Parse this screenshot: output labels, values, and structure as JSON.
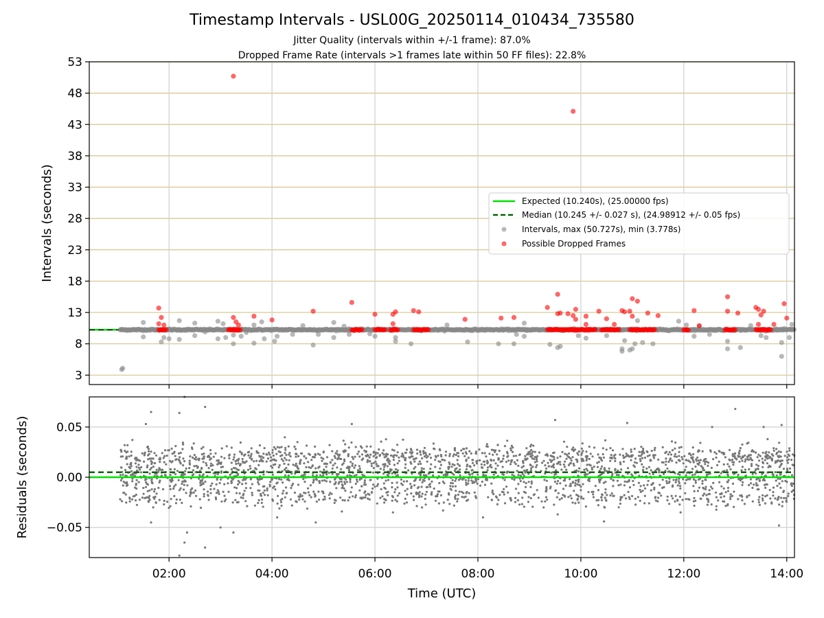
{
  "chart_data": [
    {
      "type": "scatter",
      "title": "Timestamp Intervals - USL00G_20250114_010434_735580",
      "subtitle_lines": [
        "Jitter Quality (intervals within +/-1 frame): 87.0%",
        "Dropped Frame Rate (intervals >1 frames late within 50 FF files): 22.8%"
      ],
      "xlabel": "",
      "ylabel": "Intervals (seconds)",
      "x_unit": "hours UTC",
      "xlim": [
        0.45,
        14.15
      ],
      "ylim": [
        1.5,
        53
      ],
      "x_ticks": [
        2,
        4,
        6,
        8,
        10,
        12,
        14
      ],
      "y_ticks": [
        3,
        8,
        13,
        18,
        23,
        28,
        33,
        38,
        43,
        48,
        53
      ],
      "y_tick_labels": [
        "3",
        "8",
        "13",
        "18",
        "23",
        "28",
        "33",
        "38",
        "43",
        "48",
        "53"
      ],
      "grid": "horizontal (tan) and vertical (gray)",
      "legend_position": "right",
      "legend": [
        {
          "label": "Expected (10.240s), (25.00000 fps)",
          "style": "solid-line",
          "color": "#00e000"
        },
        {
          "label": "Median (10.245 +/- 0.027 s), (24.98912 +/- 0.05 fps)",
          "style": "dashed-line",
          "color": "#006400"
        },
        {
          "label": "Intervals, max (50.727s), min (3.778s)",
          "style": "dot",
          "color": "#888888"
        },
        {
          "label": "Possible Dropped Frames",
          "style": "dot",
          "color": "#ff0000"
        }
      ],
      "expected_interval": 10.24,
      "median_interval": 10.245,
      "interval_band": {
        "x_start": 1.05,
        "x_end": 14.15,
        "value": 10.24
      },
      "intervals_outliers": [
        {
          "x": 1.08,
          "y": 3.9
        },
        {
          "x": 1.1,
          "y": 4.1
        },
        {
          "x": 1.5,
          "y": 11.4
        },
        {
          "x": 1.5,
          "y": 9.1
        },
        {
          "x": 1.85,
          "y": 8.3
        },
        {
          "x": 1.9,
          "y": 9.0
        },
        {
          "x": 2.0,
          "y": 8.8
        },
        {
          "x": 2.2,
          "y": 11.7
        },
        {
          "x": 2.2,
          "y": 8.7
        },
        {
          "x": 2.5,
          "y": 11.3
        },
        {
          "x": 2.5,
          "y": 9.3
        },
        {
          "x": 2.7,
          "y": 9.9
        },
        {
          "x": 2.95,
          "y": 11.6
        },
        {
          "x": 2.95,
          "y": 8.8
        },
        {
          "x": 3.05,
          "y": 11.2
        },
        {
          "x": 3.1,
          "y": 9.0
        },
        {
          "x": 3.25,
          "y": 8.0
        },
        {
          "x": 3.25,
          "y": 9.4
        },
        {
          "x": 3.4,
          "y": 9.2
        },
        {
          "x": 3.5,
          "y": 9.8
        },
        {
          "x": 3.65,
          "y": 11.0
        },
        {
          "x": 3.65,
          "y": 8.1
        },
        {
          "x": 3.8,
          "y": 11.5
        },
        {
          "x": 3.85,
          "y": 8.8
        },
        {
          "x": 4.05,
          "y": 8.4
        },
        {
          "x": 4.1,
          "y": 9.2
        },
        {
          "x": 4.4,
          "y": 9.5
        },
        {
          "x": 4.6,
          "y": 10.9
        },
        {
          "x": 4.8,
          "y": 7.8
        },
        {
          "x": 4.9,
          "y": 9.5
        },
        {
          "x": 5.2,
          "y": 11.4
        },
        {
          "x": 5.2,
          "y": 9.0
        },
        {
          "x": 5.4,
          "y": 10.8
        },
        {
          "x": 5.5,
          "y": 9.5
        },
        {
          "x": 5.9,
          "y": 9.6
        },
        {
          "x": 6.0,
          "y": 9.2
        },
        {
          "x": 6.3,
          "y": 10.3
        },
        {
          "x": 6.4,
          "y": 8.4
        },
        {
          "x": 6.4,
          "y": 9.0
        },
        {
          "x": 6.7,
          "y": 8.0
        },
        {
          "x": 7.4,
          "y": 11.0
        },
        {
          "x": 7.8,
          "y": 8.3
        },
        {
          "x": 8.4,
          "y": 8.0
        },
        {
          "x": 8.5,
          "y": 10.2
        },
        {
          "x": 8.7,
          "y": 8.0
        },
        {
          "x": 8.75,
          "y": 9.5
        },
        {
          "x": 8.9,
          "y": 11.3
        },
        {
          "x": 8.9,
          "y": 9.2
        },
        {
          "x": 9.4,
          "y": 7.9
        },
        {
          "x": 9.55,
          "y": 7.4
        },
        {
          "x": 9.6,
          "y": 7.6
        },
        {
          "x": 9.95,
          "y": 9.3
        },
        {
          "x": 10.1,
          "y": 8.9
        },
        {
          "x": 10.5,
          "y": 9.3
        },
        {
          "x": 10.8,
          "y": 7.2
        },
        {
          "x": 10.8,
          "y": 6.8
        },
        {
          "x": 10.85,
          "y": 8.5
        },
        {
          "x": 10.95,
          "y": 7.0
        },
        {
          "x": 11.0,
          "y": 7.2
        },
        {
          "x": 11.05,
          "y": 8.0
        },
        {
          "x": 11.1,
          "y": 11.7
        },
        {
          "x": 11.2,
          "y": 8.2
        },
        {
          "x": 11.4,
          "y": 8.0
        },
        {
          "x": 11.9,
          "y": 11.6
        },
        {
          "x": 12.05,
          "y": 11.0
        },
        {
          "x": 12.2,
          "y": 9.2
        },
        {
          "x": 12.3,
          "y": 10.8
        },
        {
          "x": 12.5,
          "y": 9.5
        },
        {
          "x": 12.85,
          "y": 7.2
        },
        {
          "x": 12.85,
          "y": 8.4
        },
        {
          "x": 13.1,
          "y": 7.4
        },
        {
          "x": 13.3,
          "y": 10.9
        },
        {
          "x": 13.5,
          "y": 9.3
        },
        {
          "x": 13.6,
          "y": 9.0
        },
        {
          "x": 13.9,
          "y": 6.0
        },
        {
          "x": 13.9,
          "y": 8.2
        },
        {
          "x": 14.05,
          "y": 9.0
        },
        {
          "x": 14.1,
          "y": 11.1
        }
      ],
      "dropped_frame_clusters": [
        {
          "x_start": 1.8,
          "x_end": 1.95,
          "y": 10.24
        },
        {
          "x_start": 3.15,
          "x_end": 3.4,
          "y": 10.24
        },
        {
          "x_start": 5.55,
          "x_end": 5.75,
          "y": 10.24
        },
        {
          "x_start": 6.0,
          "x_end": 6.2,
          "y": 10.24
        },
        {
          "x_start": 6.3,
          "x_end": 6.45,
          "y": 10.24
        },
        {
          "x_start": 6.75,
          "x_end": 7.05,
          "y": 10.24
        },
        {
          "x_start": 9.35,
          "x_end": 10.3,
          "y": 10.24
        },
        {
          "x_start": 10.4,
          "x_end": 10.75,
          "y": 10.24
        },
        {
          "x_start": 10.95,
          "x_end": 11.45,
          "y": 10.24
        },
        {
          "x_start": 12.0,
          "x_end": 12.1,
          "y": 10.24
        },
        {
          "x_start": 12.8,
          "x_end": 13.0,
          "y": 10.24
        },
        {
          "x_start": 13.4,
          "x_end": 13.7,
          "y": 10.24
        }
      ],
      "dropped_frames": [
        {
          "x": 1.8,
          "y": 13.7
        },
        {
          "x": 1.8,
          "y": 11.2
        },
        {
          "x": 1.85,
          "y": 12.2
        },
        {
          "x": 1.9,
          "y": 11.0
        },
        {
          "x": 3.25,
          "y": 50.7
        },
        {
          "x": 3.25,
          "y": 12.2
        },
        {
          "x": 3.3,
          "y": 11.5
        },
        {
          "x": 3.35,
          "y": 11.0
        },
        {
          "x": 3.65,
          "y": 12.4
        },
        {
          "x": 4.0,
          "y": 11.8
        },
        {
          "x": 4.8,
          "y": 13.2
        },
        {
          "x": 5.55,
          "y": 14.6
        },
        {
          "x": 6.0,
          "y": 12.7
        },
        {
          "x": 6.35,
          "y": 12.7
        },
        {
          "x": 6.4,
          "y": 13.1
        },
        {
          "x": 6.35,
          "y": 11.2
        },
        {
          "x": 6.75,
          "y": 13.3
        },
        {
          "x": 6.85,
          "y": 13.1
        },
        {
          "x": 7.75,
          "y": 11.9
        },
        {
          "x": 8.45,
          "y": 12.1
        },
        {
          "x": 8.7,
          "y": 12.2
        },
        {
          "x": 9.35,
          "y": 13.8
        },
        {
          "x": 9.55,
          "y": 15.9
        },
        {
          "x": 9.55,
          "y": 12.8
        },
        {
          "x": 9.6,
          "y": 12.9
        },
        {
          "x": 9.75,
          "y": 12.8
        },
        {
          "x": 9.85,
          "y": 45.1
        },
        {
          "x": 9.85,
          "y": 12.5
        },
        {
          "x": 9.9,
          "y": 13.5
        },
        {
          "x": 9.9,
          "y": 11.9
        },
        {
          "x": 10.1,
          "y": 12.4
        },
        {
          "x": 10.1,
          "y": 11.1
        },
        {
          "x": 10.35,
          "y": 13.2
        },
        {
          "x": 10.5,
          "y": 12.0
        },
        {
          "x": 10.65,
          "y": 11.1
        },
        {
          "x": 10.8,
          "y": 13.3
        },
        {
          "x": 10.85,
          "y": 13.1
        },
        {
          "x": 10.95,
          "y": 13.2
        },
        {
          "x": 11.0,
          "y": 15.2
        },
        {
          "x": 11.0,
          "y": 12.4
        },
        {
          "x": 11.1,
          "y": 14.8
        },
        {
          "x": 11.3,
          "y": 12.9
        },
        {
          "x": 11.5,
          "y": 12.5
        },
        {
          "x": 12.2,
          "y": 13.3
        },
        {
          "x": 12.3,
          "y": 10.9
        },
        {
          "x": 12.85,
          "y": 15.5
        },
        {
          "x": 12.85,
          "y": 13.2
        },
        {
          "x": 13.05,
          "y": 12.9
        },
        {
          "x": 13.4,
          "y": 13.8
        },
        {
          "x": 13.45,
          "y": 13.5
        },
        {
          "x": 13.5,
          "y": 12.6
        },
        {
          "x": 13.55,
          "y": 13.2
        },
        {
          "x": 13.45,
          "y": 11.1
        },
        {
          "x": 13.75,
          "y": 11.1
        },
        {
          "x": 13.95,
          "y": 14.4
        },
        {
          "x": 14.0,
          "y": 12.1
        }
      ]
    },
    {
      "type": "scatter",
      "title": "",
      "xlabel": "Time (UTC)",
      "ylabel": "Residuals (seconds)",
      "xlim": [
        0.45,
        14.15
      ],
      "ylim": [
        -0.08,
        0.08
      ],
      "x_ticks": [
        2,
        4,
        6,
        8,
        10,
        12,
        14
      ],
      "x_tick_labels": [
        "02:00",
        "04:00",
        "06:00",
        "08:00",
        "10:00",
        "12:00",
        "14:00"
      ],
      "y_ticks": [
        -0.05,
        0.0,
        0.05
      ],
      "y_tick_labels": [
        "−0.05",
        "0.00",
        "0.05"
      ],
      "grid": "both (gray)",
      "expected_residual": 0.0,
      "median_residual": 0.005,
      "residual_bands": [
        {
          "center": 0.02,
          "spread": 0.012,
          "weight": 0.35
        },
        {
          "center": 0.0,
          "spread": 0.012,
          "weight": 0.35
        },
        {
          "center": -0.02,
          "spread": 0.01,
          "weight": 0.2
        },
        {
          "center": 0.005,
          "spread": 0.028,
          "weight": 0.1
        }
      ],
      "residual_x_range": [
        1.05,
        14.15
      ],
      "residual_outliers": [
        {
          "x": 1.55,
          "y": 0.053
        },
        {
          "x": 1.65,
          "y": -0.045
        },
        {
          "x": 1.65,
          "y": 0.065
        },
        {
          "x": 2.2,
          "y": 0.064
        },
        {
          "x": 2.3,
          "y": -0.065
        },
        {
          "x": 2.3,
          "y": 0.08
        },
        {
          "x": 2.35,
          "y": -0.055
        },
        {
          "x": 2.7,
          "y": 0.07
        },
        {
          "x": 2.7,
          "y": -0.07
        },
        {
          "x": 3.0,
          "y": -0.05
        },
        {
          "x": 3.25,
          "y": -0.055
        },
        {
          "x": 2.2,
          "y": -0.078
        },
        {
          "x": 4.1,
          "y": -0.04
        },
        {
          "x": 4.85,
          "y": -0.045
        },
        {
          "x": 5.55,
          "y": 0.053
        },
        {
          "x": 6.35,
          "y": -0.035
        },
        {
          "x": 8.1,
          "y": -0.04
        },
        {
          "x": 9.5,
          "y": 0.057
        },
        {
          "x": 9.55,
          "y": -0.037
        },
        {
          "x": 10.45,
          "y": -0.044
        },
        {
          "x": 10.9,
          "y": 0.054
        },
        {
          "x": 13.0,
          "y": 0.068
        },
        {
          "x": 13.55,
          "y": 0.05
        },
        {
          "x": 13.85,
          "y": -0.048
        },
        {
          "x": 13.9,
          "y": 0.052
        },
        {
          "x": 12.55,
          "y": 0.05
        }
      ]
    }
  ]
}
